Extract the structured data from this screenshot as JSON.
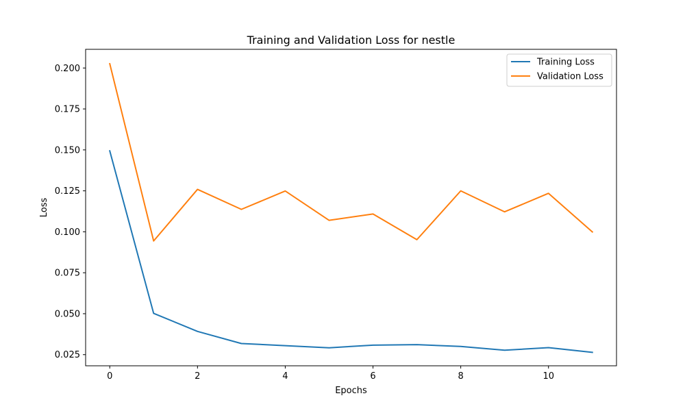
{
  "chart_data": {
    "type": "line",
    "title": "Training and Validation Loss for nestle",
    "xlabel": "Epochs",
    "ylabel": "Loss",
    "x": [
      0,
      1,
      2,
      3,
      4,
      5,
      6,
      7,
      8,
      9,
      10,
      11
    ],
    "xlim": [
      -0.55,
      11.55
    ],
    "ylim": [
      0.0182,
      0.2114
    ],
    "xticks": [
      0,
      2,
      4,
      6,
      8,
      10
    ],
    "xtick_labels": [
      "0",
      "2",
      "4",
      "6",
      "8",
      "10"
    ],
    "yticks": [
      0.025,
      0.05,
      0.075,
      0.1,
      0.125,
      0.15,
      0.175,
      0.2
    ],
    "ytick_labels": [
      "0.025",
      "0.050",
      "0.075",
      "0.100",
      "0.125",
      "0.150",
      "0.175",
      "0.200"
    ],
    "grid": false,
    "legend_position": "top-right",
    "series": [
      {
        "name": "Training Loss",
        "color": "#1f77b4",
        "values": [
          0.1494,
          0.0502,
          0.0392,
          0.0318,
          0.0305,
          0.0292,
          0.0308,
          0.0311,
          0.03,
          0.0277,
          0.0293,
          0.0264
        ]
      },
      {
        "name": "Validation Loss",
        "color": "#ff7f0e",
        "values": [
          0.2026,
          0.0944,
          0.1259,
          0.1137,
          0.1249,
          0.107,
          0.1109,
          0.0952,
          0.125,
          0.1122,
          0.1235,
          0.0999
        ]
      }
    ]
  }
}
